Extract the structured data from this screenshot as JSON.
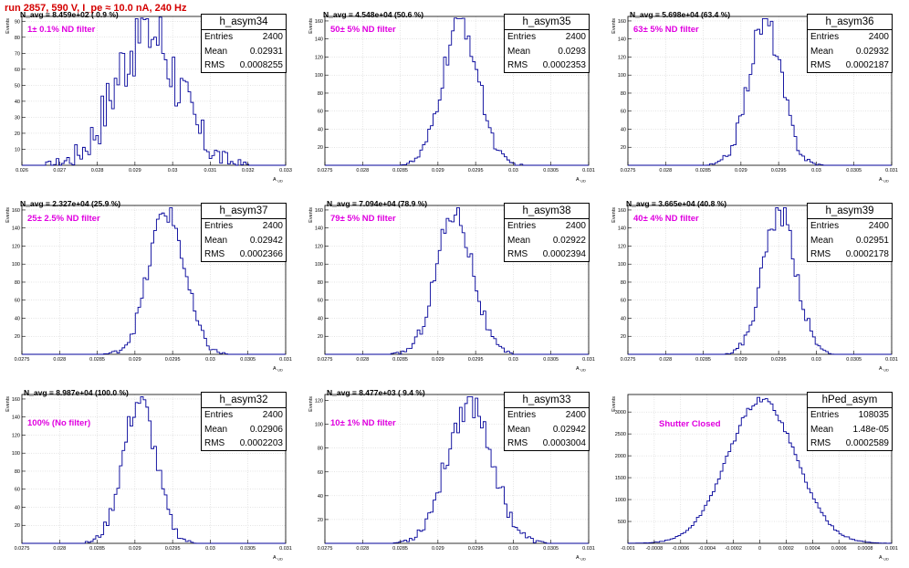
{
  "header": {
    "title": "run 2857,   590 V, I_pe ≈ 10.0 nA, 240 Hz"
  },
  "stats_labels": {
    "entries": "Entries",
    "mean": "Mean",
    "rms": "RMS"
  },
  "colors": {
    "histogram": "#000099",
    "title": "#d40000",
    "filter_label": "#e000e0"
  },
  "chart_data": [
    {
      "type": "histogram",
      "name": "h_asym34",
      "entries": "2400",
      "mean": "0.02931",
      "rms": "0.0008255",
      "navg": "N_avg = 8.459e+02 ( 0.9 %)",
      "filter": "1± 0.1% ND filter",
      "xlabel": "A_UD",
      "ylabel": "Events",
      "xlim": [
        0.026,
        0.033
      ],
      "ylim": [
        0,
        93
      ],
      "xticks": [
        "0.026",
        "0.027",
        "0.028",
        "0.029",
        "0.03",
        "0.031",
        "0.032",
        "0.033"
      ],
      "yticks": [
        10,
        20,
        30,
        40,
        50,
        60,
        70,
        80,
        90
      ],
      "mu": 0.02931,
      "sigma": 0.0008255,
      "peak": 86
    },
    {
      "type": "histogram",
      "name": "h_asym35",
      "entries": "2400",
      "mean": "0.0293",
      "rms": "0.0002353",
      "navg": "N_avg = 4.548e+04 (50.6 %)",
      "filter": "50± 5% ND filter",
      "xlabel": "A_UD",
      "ylabel": "Events",
      "xlim": [
        0.0275,
        0.031
      ],
      "ylim": [
        0,
        165
      ],
      "xticks": [
        "0.0275",
        "0.028",
        "0.0285",
        "0.029",
        "0.0295",
        "0.03",
        "0.0305",
        "0.031"
      ],
      "yticks": [
        20,
        40,
        60,
        80,
        100,
        120,
        140,
        160
      ],
      "mu": 0.0293,
      "sigma": 0.0002353,
      "peak": 160
    },
    {
      "type": "histogram",
      "name": "h_asym36",
      "entries": "2400",
      "mean": "0.02932",
      "rms": "0.0002187",
      "navg": "N_avg = 5.698e+04 (63.4 %)",
      "filter": "63± 5% ND filter",
      "xlabel": "A_UD",
      "ylabel": "Events",
      "xlim": [
        0.0275,
        0.031
      ],
      "ylim": [
        0,
        165
      ],
      "xticks": [
        "0.0275",
        "0.028",
        "0.0285",
        "0.029",
        "0.0295",
        "0.03",
        "0.0305",
        "0.031"
      ],
      "yticks": [
        20,
        40,
        60,
        80,
        100,
        120,
        140,
        160
      ],
      "mu": 0.02932,
      "sigma": 0.0002187,
      "peak": 160
    },
    {
      "type": "histogram",
      "name": "h_asym37",
      "entries": "2400",
      "mean": "0.02942",
      "rms": "0.0002366",
      "navg": "N_avg = 2.327e+04 (25.9 %)",
      "filter": "25± 2.5% ND filter",
      "xlabel": "A_UD",
      "ylabel": "Events",
      "xlim": [
        0.0275,
        0.031
      ],
      "ylim": [
        0,
        165
      ],
      "xticks": [
        "0.0275",
        "0.028",
        "0.0285",
        "0.029",
        "0.0295",
        "0.03",
        "0.0305",
        "0.031"
      ],
      "yticks": [
        20,
        40,
        60,
        80,
        100,
        120,
        140,
        160
      ],
      "mu": 0.02942,
      "sigma": 0.0002366,
      "peak": 160
    },
    {
      "type": "histogram",
      "name": "h_asym38",
      "entries": "2400",
      "mean": "0.02922",
      "rms": "0.0002394",
      "navg": "N_avg = 7.094e+04 (78.9 %)",
      "filter": "79± 5% ND filter",
      "xlabel": "A_UD",
      "ylabel": "Events",
      "xlim": [
        0.0275,
        0.031
      ],
      "ylim": [
        0,
        165
      ],
      "xticks": [
        "0.0275",
        "0.028",
        "0.0285",
        "0.029",
        "0.0295",
        "0.03",
        "0.0305",
        "0.031"
      ],
      "yticks": [
        20,
        40,
        60,
        80,
        100,
        120,
        140,
        160
      ],
      "mu": 0.02922,
      "sigma": 0.0002394,
      "peak": 160
    },
    {
      "type": "histogram",
      "name": "h_asym39",
      "entries": "2400",
      "mean": "0.02951",
      "rms": "0.0002178",
      "navg": "N_avg = 3.665e+04 (40.8 %)",
      "filter": "40± 4% ND filter",
      "xlabel": "A_UD",
      "ylabel": "Events",
      "xlim": [
        0.0275,
        0.031
      ],
      "ylim": [
        0,
        165
      ],
      "xticks": [
        "0.0275",
        "0.028",
        "0.0285",
        "0.029",
        "0.0295",
        "0.03",
        "0.0305",
        "0.031"
      ],
      "yticks": [
        20,
        40,
        60,
        80,
        100,
        120,
        140,
        160
      ],
      "mu": 0.02951,
      "sigma": 0.0002178,
      "peak": 160
    },
    {
      "type": "histogram",
      "name": "h_asym32",
      "entries": "2400",
      "mean": "0.02906",
      "rms": "0.0002203",
      "navg": "N_avg = 8.987e+04 (100.0 %)",
      "filter": "100% (No filter)",
      "xlabel": "A_UD",
      "ylabel": "Events",
      "xlim": [
        0.0275,
        0.031
      ],
      "ylim": [
        0,
        165
      ],
      "xticks": [
        "0.0275",
        "0.028",
        "0.0285",
        "0.029",
        "0.0295",
        "0.03",
        "0.0305",
        "0.031"
      ],
      "yticks": [
        20,
        40,
        60,
        80,
        100,
        120,
        140,
        160
      ],
      "mu": 0.02906,
      "sigma": 0.0002203,
      "peak": 158
    },
    {
      "type": "histogram",
      "name": "h_asym33",
      "entries": "2400",
      "mean": "0.02942",
      "rms": "0.0003004",
      "navg": "N_avg = 8.477e+03 ( 9.4 %)",
      "filter": "10± 1% ND filter",
      "xlabel": "A_UD",
      "ylabel": "Events",
      "xlim": [
        0.0275,
        0.031
      ],
      "ylim": [
        0,
        125
      ],
      "xticks": [
        "0.0275",
        "0.028",
        "0.0285",
        "0.029",
        "0.0295",
        "0.03",
        "0.0305",
        "0.031"
      ],
      "yticks": [
        20,
        40,
        60,
        80,
        100,
        120
      ],
      "mu": 0.02942,
      "sigma": 0.0003004,
      "peak": 120
    },
    {
      "type": "histogram",
      "name": "hPed_asym",
      "entries": "108035",
      "mean": "1.48e-05",
      "rms": "0.0002589",
      "navg": "",
      "filter": "Shutter Closed",
      "xlabel": "A_UD",
      "ylabel": "Events",
      "xlim": [
        -0.001,
        0.001
      ],
      "ylim": [
        0,
        3400
      ],
      "xticks": [
        "-0.001",
        "-0.0008",
        "-0.0006",
        "-0.0004",
        "-0.0002",
        "0",
        "0.0002",
        "0.0004",
        "0.0006",
        "0.0008",
        "0.001"
      ],
      "yticks": [
        500,
        1000,
        1500,
        2000,
        2500,
        3000
      ],
      "mu": 1.48e-05,
      "sigma": 0.0002589,
      "peak": 3280
    }
  ]
}
